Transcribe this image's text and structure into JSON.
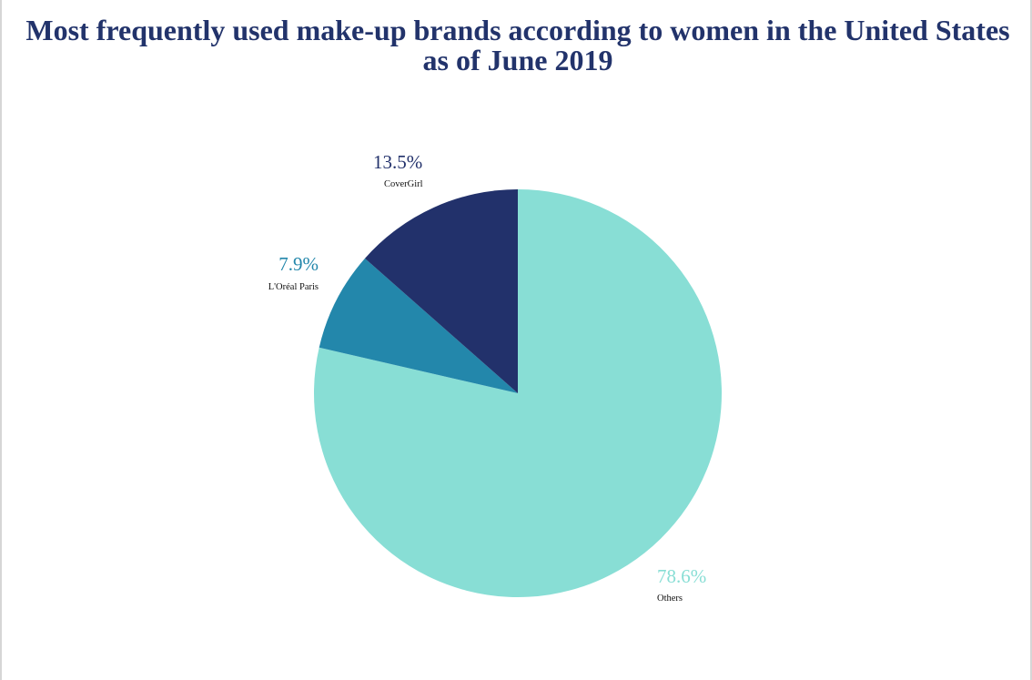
{
  "chart_data": {
    "type": "pie",
    "title": "Most frequently used make-up brands according to women in the United States as of June 2019",
    "slices": [
      {
        "name": "Others",
        "value": 78.6,
        "label": "78.6%",
        "color": "#88ded5"
      },
      {
        "name": "L'Oréal Paris",
        "value": 7.9,
        "label": "7.9%",
        "color": "#2387ab"
      },
      {
        "name": "CoverGirl",
        "value": 13.5,
        "label": "13.5%",
        "color": "#22316b"
      }
    ],
    "start": "12 o'clock",
    "direction": "clockwise",
    "legend": "none",
    "data_labels": "outside"
  }
}
